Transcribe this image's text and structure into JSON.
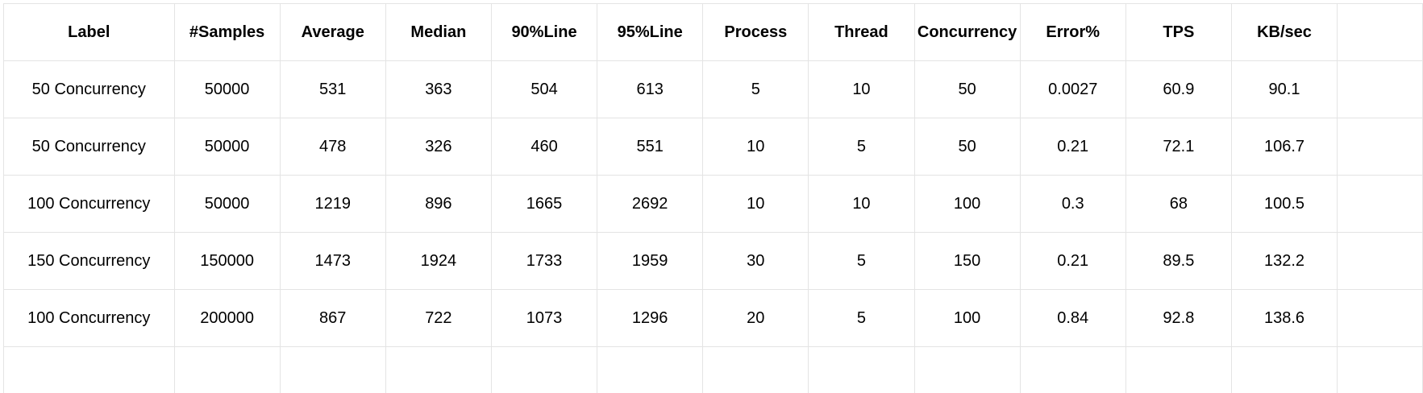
{
  "table": {
    "headers": [
      "Label",
      "#Samples",
      "Average",
      "Median",
      "90%Line",
      "95%Line",
      "Process",
      "Thread",
      "Concurrency",
      "Error%",
      "TPS",
      "KB/sec"
    ],
    "rows": [
      [
        "50 Concurrency",
        "50000",
        "531",
        "363",
        "504",
        "613",
        "5",
        "10",
        "50",
        "0.0027",
        "60.9",
        "90.1"
      ],
      [
        "50 Concurrency",
        "50000",
        "478",
        "326",
        "460",
        "551",
        "10",
        "5",
        "50",
        "0.21",
        "72.1",
        "106.7"
      ],
      [
        "100 Concurrency",
        "50000",
        "1219",
        "896",
        "1665",
        "2692",
        "10",
        "10",
        "100",
        "0.3",
        "68",
        "100.5"
      ],
      [
        "150 Concurrency",
        "150000",
        "1473",
        "1924",
        "1733",
        "1959",
        "30",
        "5",
        "150",
        "0.21",
        "89.5",
        "132.2"
      ],
      [
        "100 Concurrency",
        "200000",
        "867",
        "722",
        "1073",
        "1296",
        "20",
        "5",
        "100",
        "0.84",
        "92.8",
        "138.6"
      ]
    ]
  }
}
